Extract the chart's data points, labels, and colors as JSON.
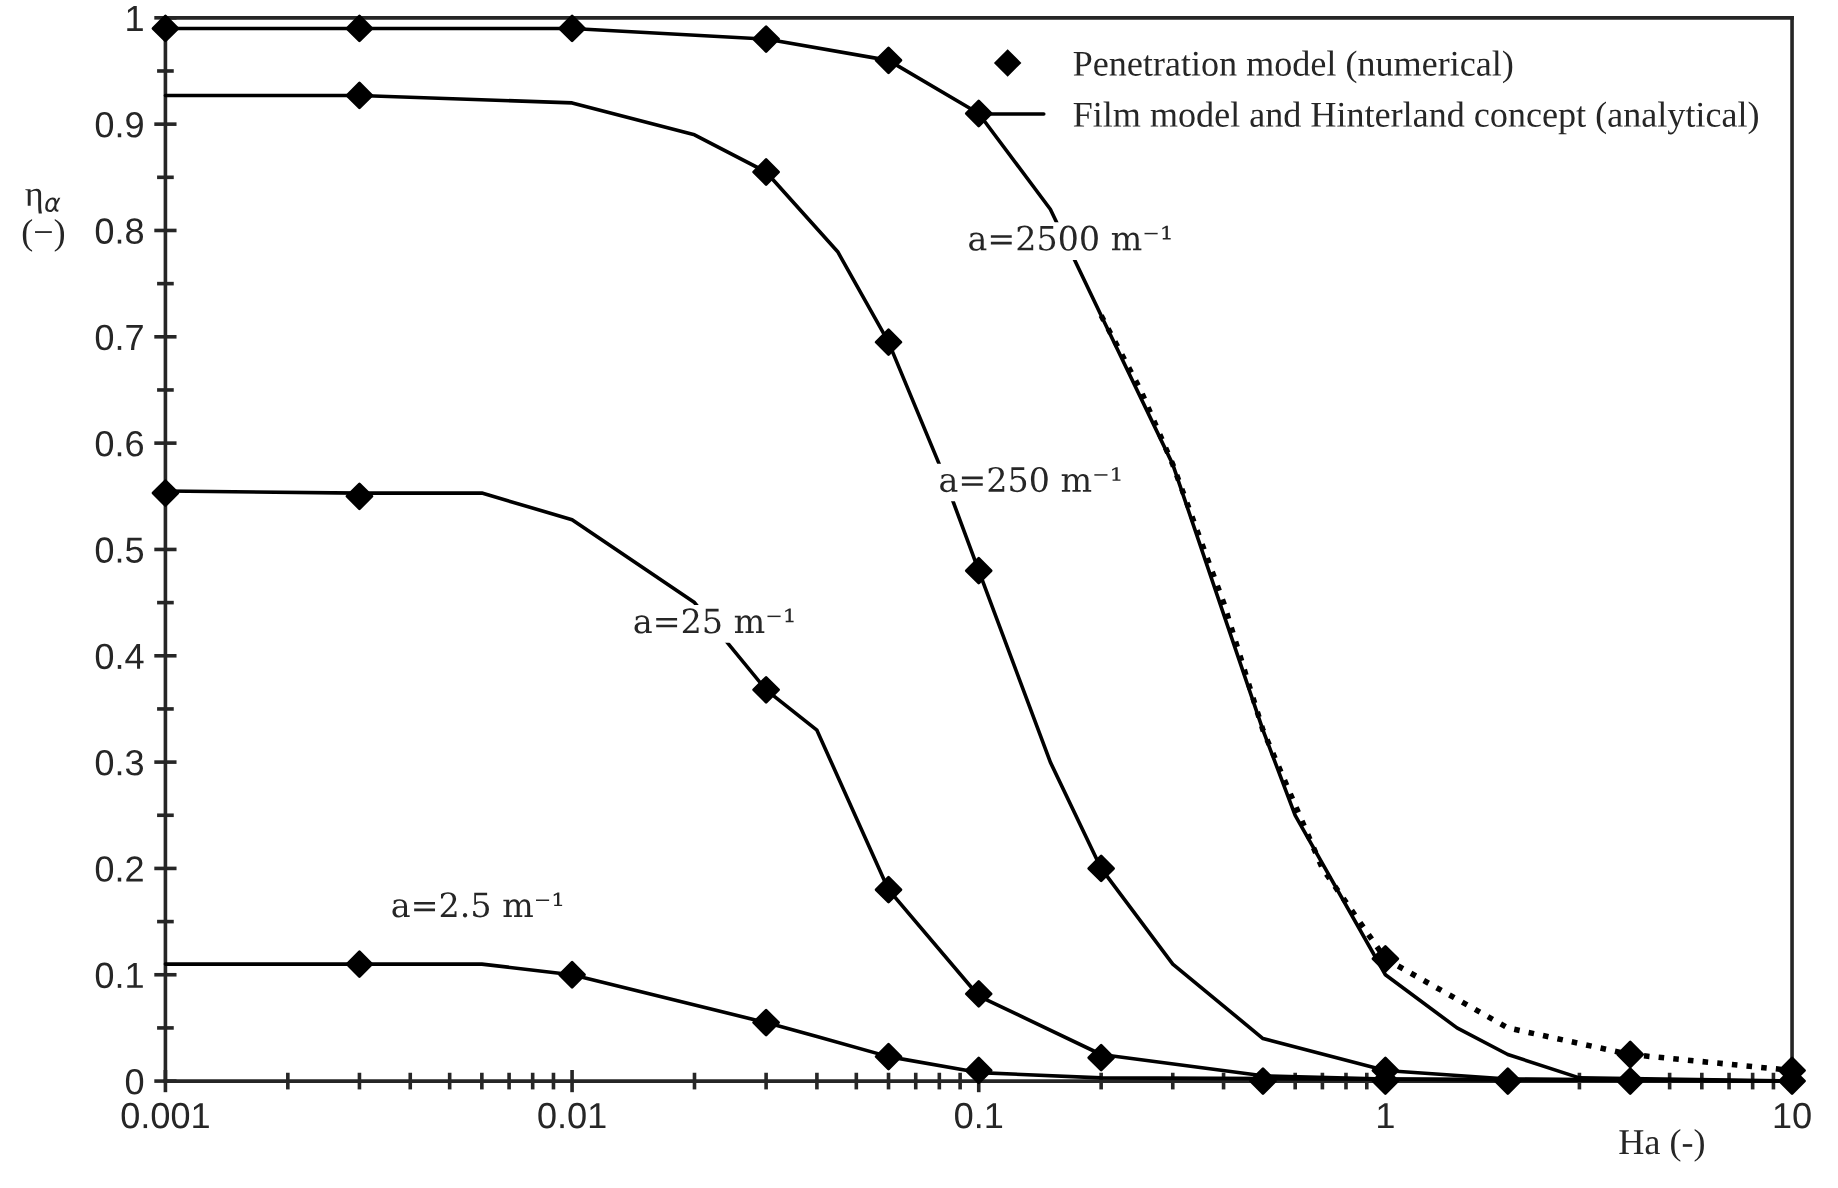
{
  "chart_data": {
    "type": "line",
    "xlabel": "Ha (-)",
    "ylabel": "η$_{α}$\n(−)",
    "log": "x",
    "xlim": [
      0.001,
      10
    ],
    "ylim": [
      0,
      1
    ],
    "xticks": [
      0.001,
      0.01,
      0.1,
      1,
      10
    ],
    "yticks": [
      0,
      0.1,
      0.2,
      0.3,
      0.4,
      0.5,
      0.6,
      0.7,
      0.8,
      0.9,
      1
    ],
    "grid": false,
    "legend": "top right",
    "series": [
      {
        "name": "Penetration model (numerical)",
        "type": "scatter",
        "marker": "diamond",
        "color": "#000000",
        "x": [
          0.001,
          0.003,
          0.01,
          0.03,
          0.06,
          0.1,
          1,
          4,
          10,
          0.003,
          0.03,
          0.06,
          0.1,
          0.2,
          1,
          4,
          0.001,
          0.003,
          0.03,
          0.06,
          0.1,
          0.2,
          0.5,
          2,
          0.003,
          0.01,
          0.03,
          0.06,
          0.1,
          1,
          10
        ],
        "values": [
          0.99,
          0.99,
          0.99,
          0.98,
          0.96,
          0.91,
          0.115,
          0.025,
          0.01,
          0.927,
          0.855,
          0.695,
          0.48,
          0.2,
          0.01,
          0,
          0.553,
          0.55,
          0.368,
          0.18,
          0.082,
          0.022,
          0,
          0,
          0.11,
          0.1,
          0.055,
          0.023,
          0.01,
          0,
          0
        ]
      },
      {
        "name": "Film model and Hinterland concept (analytical)",
        "line_style": "solid",
        "color": "#000000",
        "x": [
          0.001,
          0.01,
          0.03,
          0.06,
          0.1,
          0.15,
          0.2,
          0.3,
          0.5,
          0.6,
          1,
          1.5,
          2,
          3,
          10
        ],
        "values": [
          0.99,
          0.99,
          0.98,
          0.96,
          0.91,
          0.82,
          0.72,
          0.58,
          0.33,
          0.25,
          0.1,
          0.05,
          0.025,
          0.003,
          0
        ]
      },
      {
        "line_style": "solid",
        "color": "#000000",
        "x": [
          0.001,
          0.003,
          0.01,
          0.02,
          0.03,
          0.045,
          0.06,
          0.08,
          0.1,
          0.15,
          0.2,
          0.3,
          0.5,
          1,
          2,
          10
        ],
        "values": [
          0.927,
          0.927,
          0.92,
          0.89,
          0.855,
          0.78,
          0.695,
          0.58,
          0.48,
          0.3,
          0.2,
          0.11,
          0.04,
          0.01,
          0.002,
          0
        ]
      },
      {
        "line_style": "solid",
        "color": "#000000",
        "x": [
          0.001,
          0.003,
          0.006,
          0.01,
          0.02,
          0.03,
          0.04,
          0.06,
          0.1,
          0.2,
          0.5,
          1,
          10
        ],
        "values": [
          0.555,
          0.553,
          0.553,
          0.528,
          0.45,
          0.368,
          0.33,
          0.18,
          0.08,
          0.025,
          0.005,
          0.002,
          0
        ]
      },
      {
        "line_style": "solid",
        "color": "#000000",
        "x": [
          0.001,
          0.006,
          0.01,
          0.03,
          0.04,
          0.06,
          0.1,
          0.2,
          10
        ],
        "values": [
          0.11,
          0.11,
          0.1,
          0.055,
          0.042,
          0.023,
          0.008,
          0.003,
          0
        ]
      },
      {
        "line_style": "dotted",
        "color": "#000000",
        "x": [
          0.2,
          0.25,
          0.3,
          0.4,
          0.5,
          0.7,
          1,
          2,
          4,
          10
        ],
        "values": [
          0.72,
          0.65,
          0.58,
          0.45,
          0.33,
          0.2,
          0.115,
          0.05,
          0.025,
          0.01
        ]
      }
    ],
    "annotations": [
      {
        "text": "a=2500 m⁻¹",
        "x": 0.168,
        "y": 0.79
      },
      "a=250 m⁻¹",
      {
        "text": "a=25 m⁻¹",
        "x": 0.0224,
        "y": 0.43
      },
      "a=2.5 m⁻¹"
    ]
  }
}
